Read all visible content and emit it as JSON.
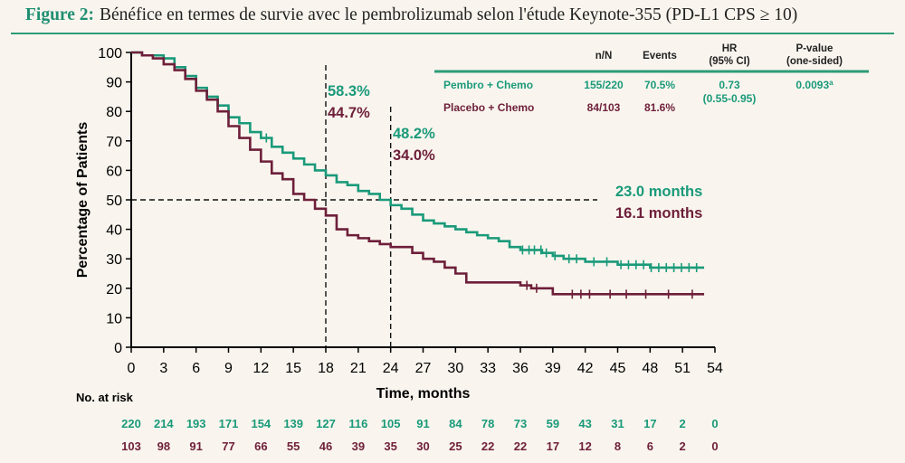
{
  "caption": {
    "label": "Figure 2:",
    "text": "Bénéfice en termes de survie avec le pembrolizumab selon l'étude Keynote-355 (PD-L1 CPS ≥ 10)"
  },
  "colors": {
    "pembro": "#1a9a7a",
    "placebo": "#6e1f3a",
    "accent": "#2e9c78",
    "axis": "#000000"
  },
  "chart_data": {
    "type": "line",
    "xlabel": "Time, months",
    "ylabel": "Percentage of Patients",
    "xlim": [
      0,
      54
    ],
    "ylim": [
      0,
      100
    ],
    "xticks": [
      0,
      3,
      6,
      9,
      12,
      15,
      18,
      21,
      24,
      27,
      30,
      33,
      36,
      39,
      42,
      45,
      48,
      51,
      54
    ],
    "yticks": [
      0,
      10,
      20,
      30,
      40,
      50,
      60,
      70,
      80,
      90,
      100
    ],
    "grid": false,
    "series": [
      {
        "name": "Pembro + Chemo",
        "color": "#1a9a7a",
        "points": [
          [
            0,
            100
          ],
          [
            1,
            99
          ],
          [
            2,
            99
          ],
          [
            3,
            98
          ],
          [
            4,
            95
          ],
          [
            5,
            92
          ],
          [
            6,
            88
          ],
          [
            7,
            85
          ],
          [
            8,
            82
          ],
          [
            9,
            78
          ],
          [
            10,
            76
          ],
          [
            11,
            73
          ],
          [
            12,
            71
          ],
          [
            13,
            68
          ],
          [
            14,
            66
          ],
          [
            15,
            64
          ],
          [
            16,
            62
          ],
          [
            17,
            60
          ],
          [
            18,
            58.3
          ],
          [
            19,
            56
          ],
          [
            20,
            55
          ],
          [
            21,
            53
          ],
          [
            22,
            52
          ],
          [
            23,
            50
          ],
          [
            24,
            48.2
          ],
          [
            25,
            47
          ],
          [
            26,
            45
          ],
          [
            27,
            43
          ],
          [
            28,
            42
          ],
          [
            29,
            41
          ],
          [
            30,
            40
          ],
          [
            31,
            39
          ],
          [
            32,
            38
          ],
          [
            33,
            37
          ],
          [
            34,
            36
          ],
          [
            35,
            34
          ],
          [
            36,
            33
          ],
          [
            37,
            33
          ],
          [
            38,
            32
          ],
          [
            39,
            31
          ],
          [
            40,
            30
          ],
          [
            41,
            30
          ],
          [
            42,
            29
          ],
          [
            43,
            29
          ],
          [
            44,
            29
          ],
          [
            45,
            28
          ],
          [
            46,
            28
          ],
          [
            47,
            28
          ],
          [
            48,
            27
          ],
          [
            49,
            27
          ],
          [
            50,
            27
          ],
          [
            51,
            27
          ],
          [
            52,
            27
          ],
          [
            53,
            27
          ]
        ],
        "censors": [
          12.5,
          36.2,
          36.8,
          37.3,
          37.9,
          38.4,
          39.2,
          40.5,
          41.2,
          42.8,
          44.0,
          45.3,
          46.0,
          46.7,
          47.4,
          48.1,
          48.8,
          49.5,
          50.2,
          50.9,
          51.6,
          52.3
        ]
      },
      {
        "name": "Placebo + Chemo",
        "color": "#6e1f3a",
        "points": [
          [
            0,
            100
          ],
          [
            1,
            99
          ],
          [
            2,
            98
          ],
          [
            3,
            96
          ],
          [
            4,
            94
          ],
          [
            5,
            91
          ],
          [
            6,
            87
          ],
          [
            7,
            84
          ],
          [
            8,
            80
          ],
          [
            9,
            75
          ],
          [
            10,
            71
          ],
          [
            11,
            67
          ],
          [
            12,
            63
          ],
          [
            13,
            59
          ],
          [
            14,
            57
          ],
          [
            15,
            52
          ],
          [
            16,
            50
          ],
          [
            17,
            47
          ],
          [
            18,
            44.7
          ],
          [
            19,
            40
          ],
          [
            20,
            38
          ],
          [
            21,
            37
          ],
          [
            22,
            36
          ],
          [
            23,
            35
          ],
          [
            24,
            34.0
          ],
          [
            25,
            34
          ],
          [
            26,
            32
          ],
          [
            27,
            30
          ],
          [
            28,
            29
          ],
          [
            29,
            27
          ],
          [
            30,
            25
          ],
          [
            31,
            22
          ],
          [
            32,
            22
          ],
          [
            33,
            22
          ],
          [
            34,
            22
          ],
          [
            35,
            22
          ],
          [
            36,
            21
          ],
          [
            37,
            20
          ],
          [
            38,
            20
          ],
          [
            39,
            18
          ],
          [
            40,
            18
          ],
          [
            41,
            18
          ],
          [
            42,
            18
          ],
          [
            43,
            18
          ],
          [
            44,
            18
          ],
          [
            45,
            18
          ],
          [
            46,
            18
          ],
          [
            47,
            18
          ],
          [
            48,
            18
          ],
          [
            49,
            18
          ],
          [
            50,
            18
          ],
          [
            51,
            18
          ],
          [
            52,
            18
          ],
          [
            53,
            18
          ]
        ],
        "censors": [
          36.6,
          37.5,
          40.8,
          41.6,
          42.4,
          44.3,
          45.8,
          47.6,
          49.7,
          51.9
        ]
      }
    ],
    "reference_lines": {
      "horizontal_y": 50,
      "vertical_x": [
        18,
        24
      ]
    },
    "annotations": {
      "at_18": {
        "pembro": "58.3%",
        "placebo": "44.7%"
      },
      "at_24": {
        "pembro": "48.2%",
        "placebo": "34.0%"
      },
      "median": {
        "pembro": "23.0 months",
        "placebo": "16.1 months"
      }
    },
    "table": {
      "headers": {
        "nn": "n/N",
        "events": "Events",
        "hr1": "HR",
        "hr2": "(95% CI)",
        "pv1": "P-value",
        "pv2": "(one-sided)"
      },
      "rows": [
        {
          "label": "Pembro + Chemo",
          "nn": "155/220",
          "events": "70.5%",
          "hr": "0.73",
          "ci": "(0.55-0.95)",
          "p": "0.0093",
          "p_sup": "a"
        },
        {
          "label": "Placebo + Chemo",
          "nn": "84/103",
          "events": "81.6%",
          "hr": "",
          "ci": "",
          "p": "",
          "p_sup": ""
        }
      ]
    },
    "at_risk": {
      "title": "No. at risk",
      "pembro": [
        "220",
        "214",
        "193",
        "171",
        "154",
        "139",
        "127",
        "116",
        "105",
        "91",
        "84",
        "78",
        "73",
        "59",
        "43",
        "31",
        "17",
        "2",
        "0"
      ],
      "placebo": [
        "103",
        "98",
        "91",
        "77",
        "66",
        "55",
        "46",
        "39",
        "35",
        "30",
        "25",
        "22",
        "22",
        "17",
        "12",
        "8",
        "6",
        "2",
        "0"
      ]
    }
  }
}
